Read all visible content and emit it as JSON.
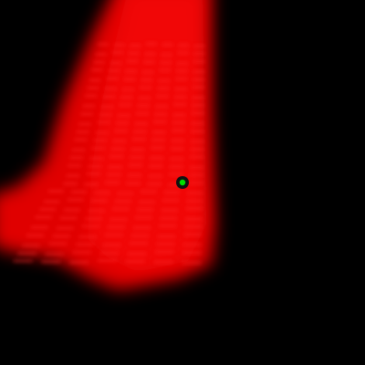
{
  "image": {
    "background_color": "#000000",
    "sample_color": "#e00000",
    "sample_highlight_color": "#ff1010",
    "band_color": "#ff2a2a",
    "marker_fill_color": "#00e000",
    "marker_ring_color": "#111111",
    "marker_icon": "point-marker"
  }
}
